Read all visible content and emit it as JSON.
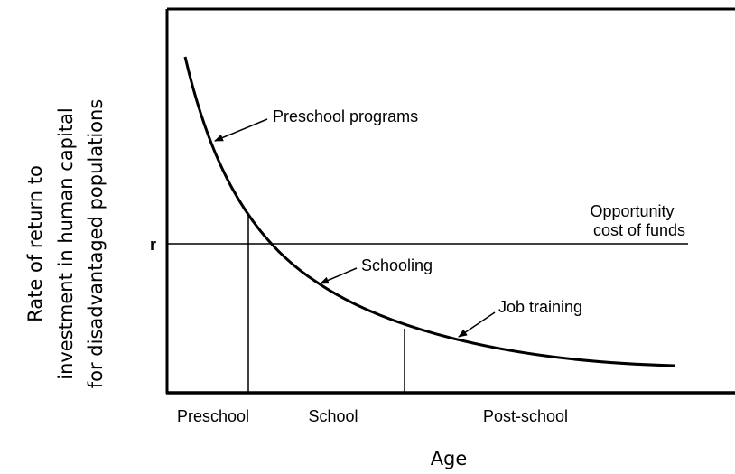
{
  "y_axis_label": [
    "Rate of return to",
    "investment in human capital",
    "for disadvantaged populations"
  ],
  "x_axis_label": "Age",
  "r_label": "r",
  "opportunity_cost_label": [
    "Opportunity",
    "cost of funds"
  ],
  "annotations": {
    "preschool_programs": "Preschool programs",
    "schooling": "Schooling",
    "job_training": "Job training"
  },
  "stages": [
    "Preschool",
    "School",
    "Post-school"
  ]
}
